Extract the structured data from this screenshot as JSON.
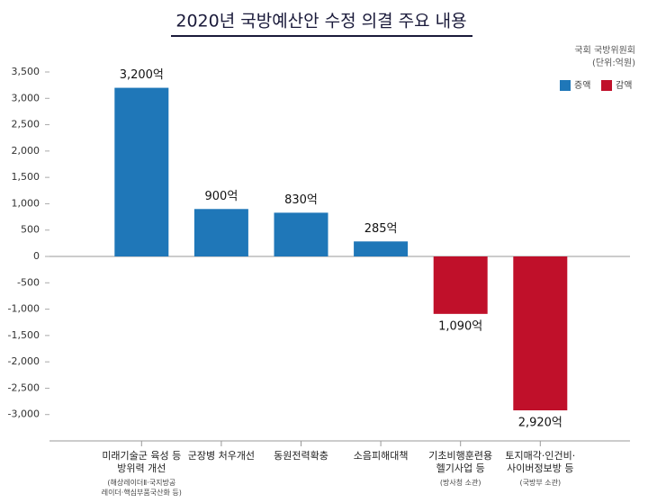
{
  "chart_data": {
    "type": "bar",
    "title": "2020년 국방예산안 수정 의결 주요 내용",
    "source": "국회 국방위원회",
    "unit": "(단위:억원)",
    "categories": [
      "미래기술군 육성 등\n방위력 개선",
      "군장병 처우개선",
      "동원전력확충",
      "소음피해대책",
      "기초비행훈련용\n헬기사업 등",
      "토지매각·인건비·\n사이버정보방 등"
    ],
    "category_notes": [
      "(해상레이더Ⅱ·국지방공\n레이더·핵심부품국산화 등)",
      null,
      null,
      null,
      "(방사청 소관)",
      "(국방부 소관)"
    ],
    "series": [
      {
        "name": "증액",
        "color": "#1f77b8",
        "values": [
          3200,
          900,
          830,
          285,
          null,
          null
        ],
        "value_labels": [
          "3,200억",
          "900억",
          "830억",
          "285억",
          null,
          null
        ]
      },
      {
        "name": "감액",
        "color": "#c0102a",
        "values": [
          null,
          null,
          null,
          null,
          -1090,
          -2920
        ],
        "value_labels": [
          null,
          null,
          null,
          null,
          "1,090억",
          "2,920억"
        ]
      }
    ],
    "ylim": [
      -3500,
      3500
    ],
    "yticks": [
      {
        "value": 3500,
        "label": "3,500"
      },
      {
        "value": 3000,
        "label": "3,000"
      },
      {
        "value": 2500,
        "label": "2,500"
      },
      {
        "value": 2000,
        "label": "2,000"
      },
      {
        "value": 1500,
        "label": "1,500"
      },
      {
        "value": 1000,
        "label": "1,000"
      },
      500,
      0,
      -500,
      {
        "value": -1000,
        "label": "-1,000"
      },
      {
        "value": -1500,
        "label": "-1,500"
      },
      {
        "value": -2000,
        "label": "-2,000"
      },
      {
        "value": -2500,
        "label": "-2,500"
      },
      {
        "value": -3000,
        "label": "-3,000"
      }
    ],
    "legend": "top-right",
    "grid": false
  }
}
